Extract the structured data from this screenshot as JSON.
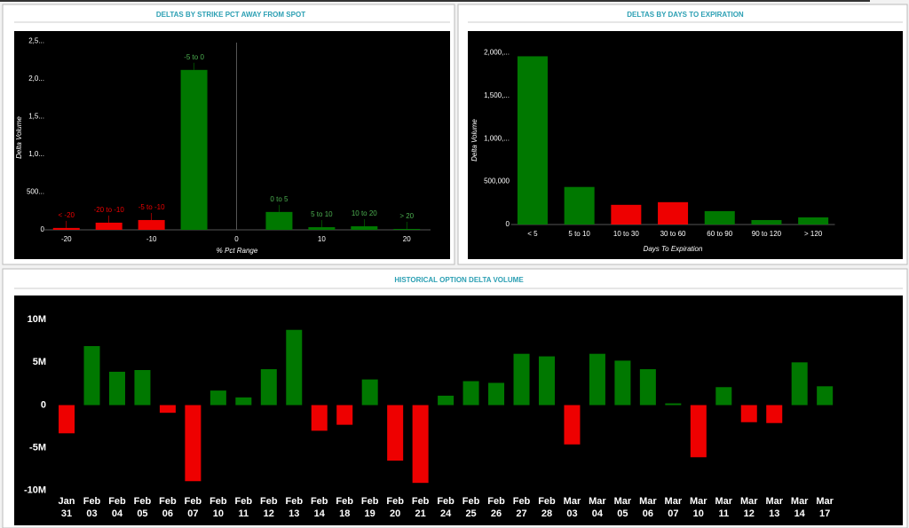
{
  "chart_data": [
    {
      "type": "bar",
      "title": "DELTAS BY STRIKE PCT AWAY FROM SPOT",
      "x_label": "% Pct Range",
      "y_label": "Delta Volume",
      "categories": [
        "< -20",
        "-20 to -10",
        "-5 to -10",
        "-5 to 0",
        "0 to 5",
        "5 to 10",
        "10 to 20",
        "> 20"
      ],
      "x": [
        -20,
        -15,
        -10,
        -5,
        5,
        10,
        15,
        20
      ],
      "values": [
        25000,
        95000,
        130000,
        2120000,
        237000,
        35000,
        47000,
        12000
      ],
      "colors": [
        "#ee0000",
        "#ee0000",
        "#ee0000",
        "#007800",
        "#007800",
        "#007800",
        "#007800",
        "#007800"
      ],
      "xlim": [
        -23,
        23
      ],
      "xticks": [
        -20,
        -10,
        0,
        10,
        20
      ],
      "ylim": [
        0,
        2600000
      ],
      "yticks": [
        0,
        {
          "value": 500000,
          "label": "500..."
        },
        {
          "value": 1000000,
          "label": "1,0..."
        },
        {
          "value": 1500000,
          "label": "1,5..."
        },
        {
          "value": 2000000,
          "label": "2,0..."
        },
        {
          "value": 2500000,
          "label": "2,5..."
        }
      ]
    },
    {
      "type": "bar",
      "title": "DELTAS BY DAYS TO EXPIRATION",
      "x_label": "Days To Expiration",
      "y_label": "Delta Volume",
      "categories": [
        "< 5",
        "5 to 10",
        "10 to 30",
        "30 to 60",
        "60 to 90",
        "90 to 120",
        "> 120"
      ],
      "values": [
        1958000,
        437000,
        229000,
        260000,
        156000,
        52000,
        83000
      ],
      "colors": [
        "#007800",
        "#007800",
        "#ee0000",
        "#ee0000",
        "#007800",
        "#007800",
        "#007800"
      ],
      "ylim": [
        0,
        2200000
      ],
      "yticks": [
        0,
        {
          "value": 500000,
          "label": "500,000"
        },
        {
          "value": 1000000,
          "label": "1,000,..."
        },
        {
          "value": 1500000,
          "label": "1,500,..."
        },
        {
          "value": 2000000,
          "label": "2,000,..."
        }
      ]
    },
    {
      "type": "bar",
      "title": "HISTORICAL OPTION DELTA VOLUME",
      "categories": [
        [
          "Jan",
          "31"
        ],
        [
          "Feb",
          "03"
        ],
        [
          "Feb",
          "04"
        ],
        [
          "Feb",
          "05"
        ],
        [
          "Feb",
          "06"
        ],
        [
          "Feb",
          "07"
        ],
        [
          "Feb",
          "10"
        ],
        [
          "Feb",
          "11"
        ],
        [
          "Feb",
          "12"
        ],
        [
          "Feb",
          "13"
        ],
        [
          "Feb",
          "14"
        ],
        [
          "Feb",
          "18"
        ],
        [
          "Feb",
          "19"
        ],
        [
          "Feb",
          "20"
        ],
        [
          "Feb",
          "21"
        ],
        [
          "Feb",
          "24"
        ],
        [
          "Feb",
          "25"
        ],
        [
          "Feb",
          "26"
        ],
        [
          "Feb",
          "27"
        ],
        [
          "Feb",
          "28"
        ],
        [
          "Mar",
          "03"
        ],
        [
          "Mar",
          "04"
        ],
        [
          "Mar",
          "05"
        ],
        [
          "Mar",
          "06"
        ],
        [
          "Mar",
          "07"
        ],
        [
          "Mar",
          "10"
        ],
        [
          "Mar",
          "11"
        ],
        [
          "Mar",
          "12"
        ],
        [
          "Mar",
          "13"
        ],
        [
          "Mar",
          "14"
        ],
        [
          "Mar",
          "17"
        ]
      ],
      "values": [
        -3300000,
        6900000,
        3900000,
        4100000,
        -900000,
        -8900000,
        1700000,
        900000,
        4200000,
        8800000,
        -3000000,
        -2300000,
        3000000,
        -6500000,
        -9100000,
        1100000,
        2800000,
        2600000,
        6000000,
        5700000,
        -4600000,
        6000000,
        5200000,
        4200000,
        200000,
        -6100000,
        2100000,
        -2000000,
        -2100000,
        5000000,
        2200000
      ],
      "colors": [
        "#ee0000",
        "#007800",
        "#007800",
        "#007800",
        "#ee0000",
        "#ee0000",
        "#007800",
        "#007800",
        "#007800",
        "#007800",
        "#ee0000",
        "#ee0000",
        "#007800",
        "#ee0000",
        "#ee0000",
        "#007800",
        "#007800",
        "#007800",
        "#007800",
        "#007800",
        "#ee0000",
        "#007800",
        "#007800",
        "#007800",
        "#007800",
        "#ee0000",
        "#007800",
        "#ee0000",
        "#ee0000",
        "#007800",
        "#007800"
      ],
      "ylim": [
        -12300000,
        12300000
      ],
      "yticks": [
        {
          "value": -10000000,
          "label": "-10M"
        },
        {
          "value": -5000000,
          "label": "-5M"
        },
        0,
        {
          "value": 5000000,
          "label": "5M"
        },
        {
          "value": 10000000,
          "label": "10M"
        }
      ]
    }
  ]
}
